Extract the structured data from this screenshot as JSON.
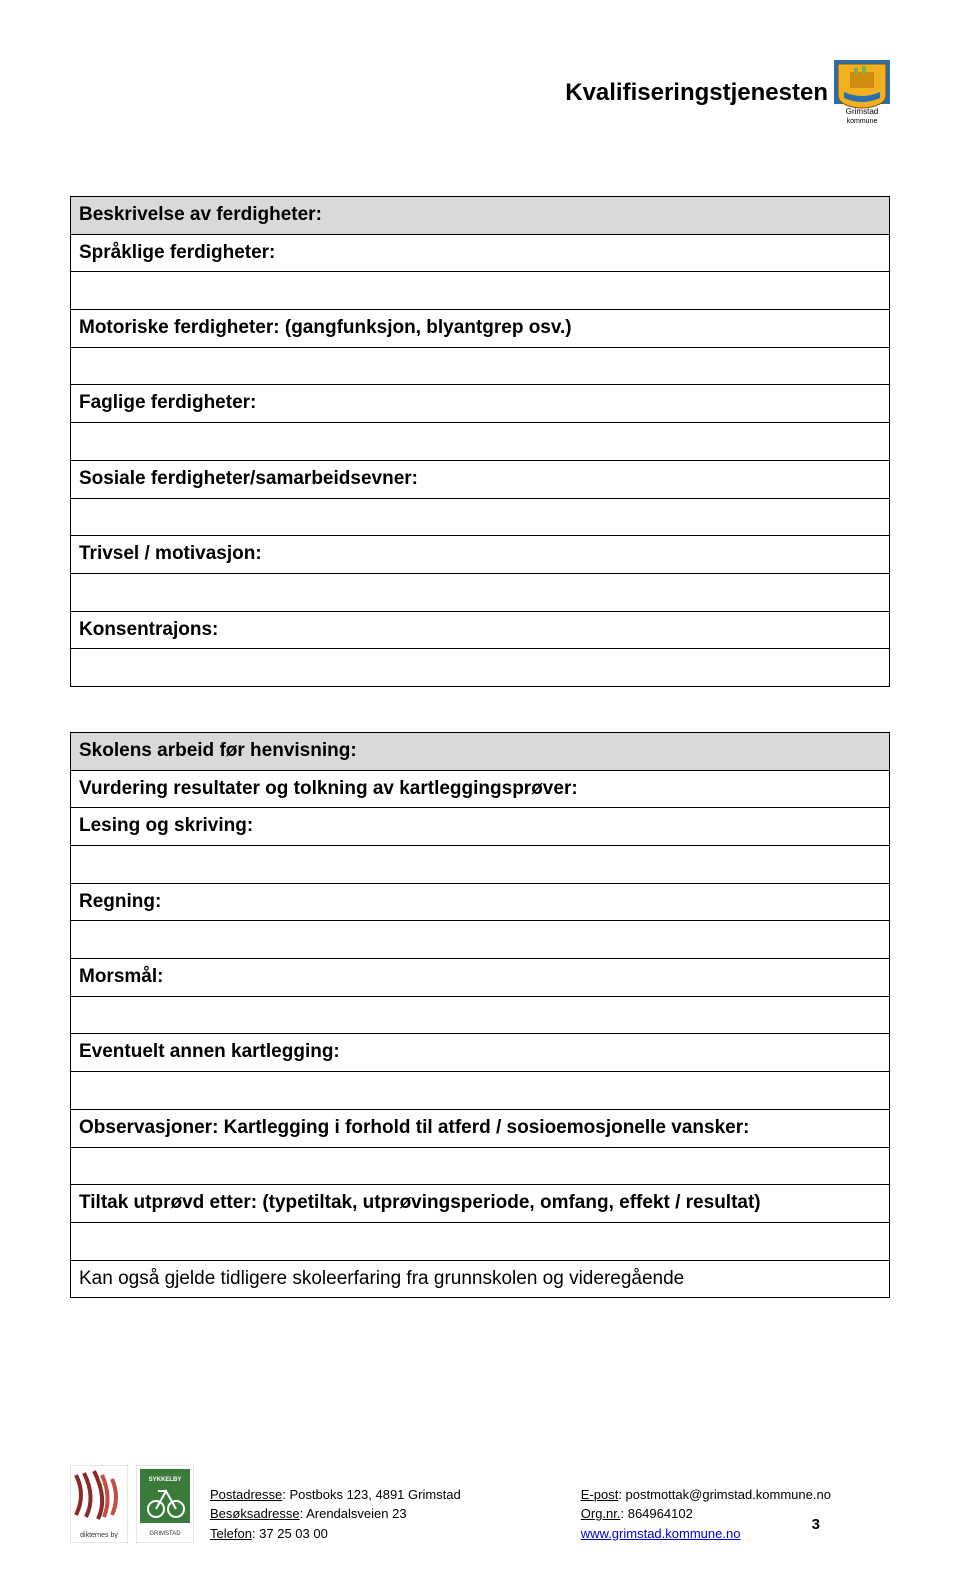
{
  "header": {
    "title": "Kvalifiseringstjenesten",
    "municipality": "Grimstad",
    "municipality_sub": "kommune",
    "crest_bg": "#2a6fb0",
    "crest_shield": "#f0b020",
    "crest_flag": "#7fb24f"
  },
  "section1": {
    "header": "Beskrivelse av ferdigheter:",
    "rows": [
      {
        "label": "Språklige ferdigheter:",
        "type": "label"
      },
      {
        "type": "empty"
      },
      {
        "label": "Motoriske ferdigheter: (gangfunksjon, blyantgrep osv.)",
        "type": "label"
      },
      {
        "type": "empty"
      },
      {
        "label": "Faglige ferdigheter:",
        "type": "label"
      },
      {
        "type": "empty"
      },
      {
        "label": "Sosiale ferdigheter/samarbeidsevner:",
        "type": "label"
      },
      {
        "type": "empty"
      },
      {
        "label": "Trivsel / motivasjon:",
        "type": "label"
      },
      {
        "type": "empty"
      },
      {
        "label": "Konsentrajons:",
        "type": "label"
      },
      {
        "type": "empty"
      }
    ]
  },
  "section2": {
    "header": "Skolens arbeid før henvisning:",
    "rows": [
      {
        "label": "Vurdering resultater og tolkning av kartleggingsprøver:",
        "type": "label"
      },
      {
        "label": "Lesing og skriving:",
        "type": "label"
      },
      {
        "type": "empty"
      },
      {
        "label": "Regning:",
        "type": "label"
      },
      {
        "type": "empty"
      },
      {
        "label": "Morsmål:",
        "type": "label"
      },
      {
        "type": "empty"
      },
      {
        "label": "Eventuelt annen kartlegging:",
        "type": "label"
      },
      {
        "type": "empty"
      },
      {
        "label": "Observasjoner: Kartlegging i forhold til atferd / sosioemosjonelle vansker:",
        "type": "label"
      },
      {
        "type": "empty"
      },
      {
        "label": "Tiltak utprøvd etter: (typetiltak, utprøvingsperiode, omfang, effekt / resultat)",
        "type": "label"
      },
      {
        "type": "empty"
      },
      {
        "label": "Kan også gjelde tidligere skoleerfaring fra grunnskolen og videregående",
        "type": "filled"
      }
    ]
  },
  "footer": {
    "left": {
      "postadresse_label": "Postadresse",
      "postadresse_value": ": Postboks 123, 4891 Grimstad",
      "besoksadresse_label": "Besøksadresse",
      "besoksadresse_value": ": Arendalsveien 23",
      "telefon_label": "Telefon",
      "telefon_value": ": 37 25 03 00"
    },
    "right": {
      "epost_label": "E-post",
      "epost_value": ": postmottak@grimstad.kommune.no",
      "orgnr_label": "Org.nr.",
      "orgnr_value": ": 864964102",
      "web": "www.grimstad.kommune.no"
    },
    "page_number": "3"
  }
}
